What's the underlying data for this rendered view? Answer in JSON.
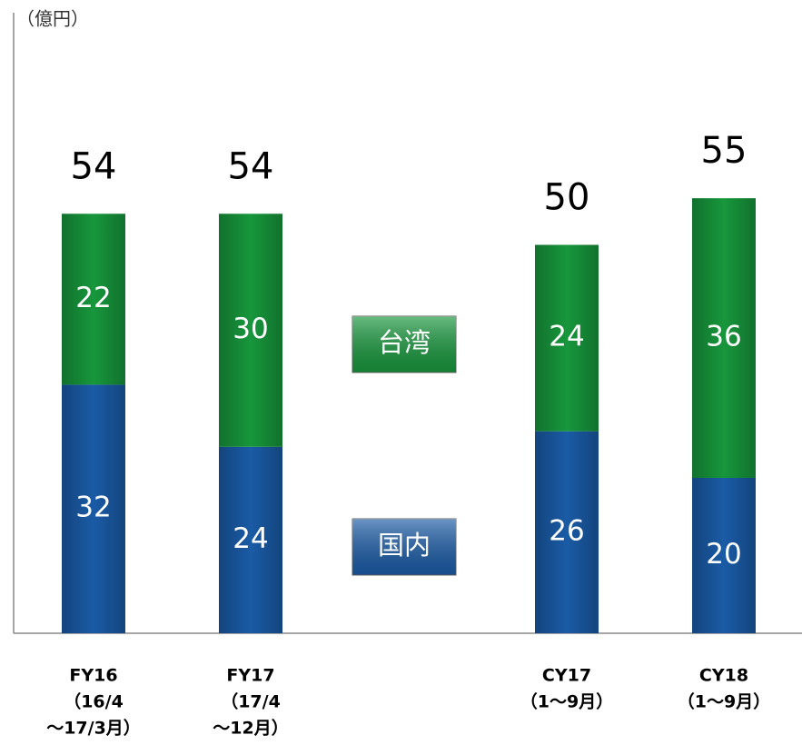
{
  "chart_data": {
    "type": "stacked-bar",
    "y_label": "（億円）",
    "categories": [
      [
        "FY16",
        "（16/4",
        "～17/3月）"
      ],
      [
        "FY17",
        "（17/4",
        "～12月）"
      ],
      [
        "CY17",
        "（1～9月）"
      ],
      [
        "CY18",
        "（1～9月）"
      ]
    ],
    "series": [
      {
        "name": "国内",
        "color": "#1a5ba6",
        "values": [
          32,
          24,
          26,
          20
        ]
      },
      {
        "name": "台湾",
        "color": "#17973c",
        "values": [
          22,
          30,
          24,
          36
        ]
      }
    ],
    "totals": [
      54,
      54,
      50,
      55
    ],
    "ylim": [
      0,
      80
    ]
  }
}
